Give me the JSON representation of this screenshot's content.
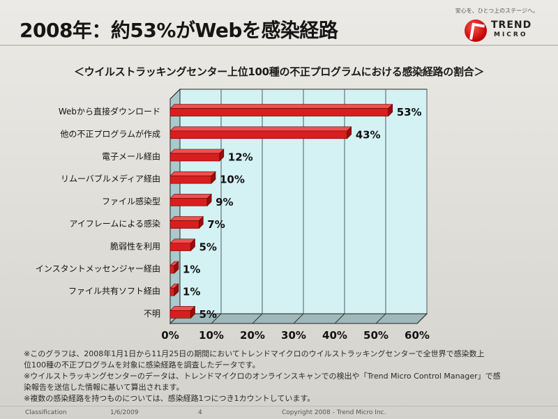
{
  "header": {
    "title": "2008年：約53%がWebを感染経路",
    "tagline": "安心を、ひとつ上のステージへ。",
    "logo_line1": "TREND",
    "logo_line2": "MICRO"
  },
  "chart_data": {
    "type": "bar",
    "orientation": "horizontal",
    "title": "＜ウイルストラッキングセンター上位100種の不正プログラムにおける感染経路の割合＞",
    "categories": [
      "Webから直接ダウンロード",
      "他の不正プログラムが作成",
      "電子メール経由",
      "リムーバブルメディア経由",
      "ファイル感染型",
      "アイフレームによる感染",
      "脆弱性を利用",
      "インスタントメッセンジャー経由",
      "ファイル共有ソフト経由",
      "不明"
    ],
    "values": [
      53,
      43,
      12,
      10,
      9,
      7,
      5,
      1,
      1,
      5
    ],
    "data_labels": [
      "53%",
      "43%",
      "12%",
      "10%",
      "9%",
      "7%",
      "5%",
      "1%",
      "1%",
      "5%"
    ],
    "x_ticks": [
      "0%",
      "10%",
      "20%",
      "30%",
      "40%",
      "50%",
      "60%"
    ],
    "xlim": [
      0,
      60
    ],
    "grid": true,
    "legend": "none",
    "colors": {
      "bar": "#d81e1e",
      "plot_bg": "#d4f2f4",
      "grid": "#4a5a60"
    }
  },
  "notes": [
    "※このグラフは、2008年1月1日から11月25日の期間においてトレンドマイクロのウイルストラッキングセンターで全世界で感染数上",
    "位100種の不正プログラムを対象に感染経路を調査したデータです。",
    "※ウイルストラッキングセンターのデータは、トレンドマイクロのオンラインスキャンでの検出や「Trend Micro Control Manager」で感",
    "染報告を送信した情報に基いて算出されます。",
    "※複数の感染経路を持つものについては、感染経路1つにつき1カウントしています。"
  ],
  "footer": {
    "classification": "Classification",
    "date": "1/6/2009",
    "page": "4",
    "copyright": "Copyright 2008 - Trend Micro Inc."
  }
}
